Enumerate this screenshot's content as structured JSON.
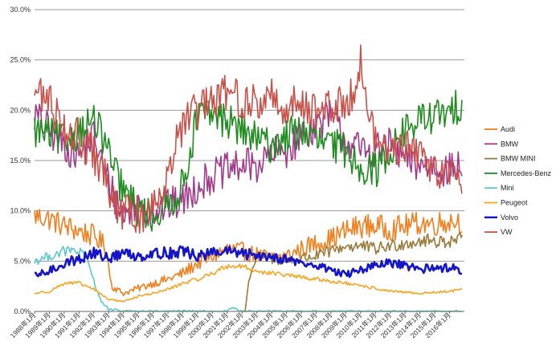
{
  "chart_data": {
    "type": "line",
    "title": "",
    "xlabel": "",
    "ylabel": "",
    "ylim": [
      0,
      30
    ],
    "y_ticks": [
      "0.0%",
      "5.0%",
      "10.0%",
      "15.0%",
      "20.0%",
      "25.0%",
      "30.0%"
    ],
    "x_ticks": [
      "1988年1月",
      "1989年1月",
      "1990年1月",
      "1991年1月",
      "1992年1月",
      "1993年1月",
      "1994年1月",
      "1995年1月",
      "1996年1月",
      "1997年1月",
      "1998年1月",
      "1999年1月",
      "2000年1月",
      "2001年1月",
      "2002年1月",
      "2003年1月",
      "2004年1月",
      "2005年1月",
      "2006年1月",
      "2007年1月",
      "2008年1月",
      "2009年1月",
      "2010年1月",
      "2011年1月",
      "2012年1月",
      "2013年1月",
      "2014年1月",
      "2015年1月",
      "2016年1月"
    ],
    "x_range": [
      1988,
      2017
    ],
    "grid": "horizontal",
    "legend": "right",
    "series": [
      {
        "name": "Audi",
        "color": "#f07f1e",
        "noise": 1.2,
        "width": 1.6,
        "points": [
          [
            1988,
            9.5
          ],
          [
            1989,
            9.2
          ],
          [
            1990,
            8.5
          ],
          [
            1991,
            8.0
          ],
          [
            1992,
            7.5
          ],
          [
            1992.8,
            6.5
          ],
          [
            1993.2,
            2.5
          ],
          [
            1994,
            1.8
          ],
          [
            1995,
            2.3
          ],
          [
            1996,
            2.8
          ],
          [
            1997,
            3.2
          ],
          [
            1998,
            3.8
          ],
          [
            1999,
            4.8
          ],
          [
            2000,
            5.5
          ],
          [
            2001,
            6.2
          ],
          [
            2002,
            6.0
          ],
          [
            2003,
            5.6
          ],
          [
            2004,
            5.3
          ],
          [
            2005,
            5.5
          ],
          [
            2006,
            6.2
          ],
          [
            2007,
            6.8
          ],
          [
            2008,
            7.2
          ],
          [
            2009,
            8.0
          ],
          [
            2010,
            8.5
          ],
          [
            2011,
            8.5
          ],
          [
            2012,
            8.2
          ],
          [
            2013,
            8.5
          ],
          [
            2014,
            8.8
          ],
          [
            2015,
            8.7
          ],
          [
            2016,
            9.0
          ],
          [
            2016.9,
            9.0
          ]
        ]
      },
      {
        "name": "BMW",
        "color": "#a23a8c",
        "noise": 1.8,
        "width": 1.6,
        "points": [
          [
            1988,
            19.5
          ],
          [
            1989,
            18.0
          ],
          [
            1990,
            16.5
          ],
          [
            1991,
            15.5
          ],
          [
            1992,
            17.5
          ],
          [
            1992.7,
            14.0
          ],
          [
            1993.5,
            11.0
          ],
          [
            1994,
            9.5
          ],
          [
            1995,
            10.5
          ],
          [
            1996,
            10.0
          ],
          [
            1997,
            10.5
          ],
          [
            1998,
            11.0
          ],
          [
            1999,
            12.5
          ],
          [
            2000,
            13.5
          ],
          [
            2001,
            14.0
          ],
          [
            2002,
            14.5
          ],
          [
            2003,
            14.5
          ],
          [
            2004,
            15.5
          ],
          [
            2005,
            16.0
          ],
          [
            2006,
            17.5
          ],
          [
            2007,
            18.5
          ],
          [
            2008,
            19.5
          ],
          [
            2009,
            17.0
          ],
          [
            2010,
            16.0
          ],
          [
            2011,
            16.0
          ],
          [
            2012,
            16.5
          ],
          [
            2013,
            15.0
          ],
          [
            2014,
            14.5
          ],
          [
            2015,
            14.5
          ],
          [
            2016,
            14.0
          ],
          [
            2016.9,
            14.5
          ]
        ]
      },
      {
        "name": "BMW MINI",
        "color": "#9a7a3a",
        "noise": 0.8,
        "width": 1.6,
        "points": [
          [
            2002.2,
            0.0
          ],
          [
            2002.5,
            3.5
          ],
          [
            2003,
            5.5
          ],
          [
            2004,
            5.2
          ],
          [
            2005,
            5.0
          ],
          [
            2006,
            5.3
          ],
          [
            2007,
            5.5
          ],
          [
            2008,
            6.0
          ],
          [
            2009,
            6.5
          ],
          [
            2010,
            6.5
          ],
          [
            2011,
            6.2
          ],
          [
            2012,
            6.5
          ],
          [
            2013,
            6.8
          ],
          [
            2014,
            7.0
          ],
          [
            2015,
            7.0
          ],
          [
            2016,
            7.0
          ],
          [
            2016.9,
            7.2
          ]
        ]
      },
      {
        "name": "Mercedes-Benz",
        "color": "#1e8c1e",
        "noise": 1.8,
        "width": 1.6,
        "points": [
          [
            1988,
            18.0
          ],
          [
            1989,
            17.5
          ],
          [
            1990,
            17.0
          ],
          [
            1991,
            18.0
          ],
          [
            1992,
            19.0
          ],
          [
            1992.7,
            17.0
          ],
          [
            1993.5,
            13.5
          ],
          [
            1994,
            12.0
          ],
          [
            1995,
            10.0
          ],
          [
            1996,
            9.5
          ],
          [
            1997,
            10.5
          ],
          [
            1998,
            12.5
          ],
          [
            1999,
            19.5
          ],
          [
            2000,
            19.5
          ],
          [
            2001,
            19.0
          ],
          [
            2002,
            18.0
          ],
          [
            2003,
            17.0
          ],
          [
            2004,
            16.5
          ],
          [
            2005,
            17.5
          ],
          [
            2006,
            18.0
          ],
          [
            2007,
            17.0
          ],
          [
            2008,
            16.5
          ],
          [
            2009,
            16.0
          ],
          [
            2010,
            14.5
          ],
          [
            2011,
            14.0
          ],
          [
            2012,
            16.0
          ],
          [
            2013,
            18.0
          ],
          [
            2014,
            19.0
          ],
          [
            2015,
            19.5
          ],
          [
            2016,
            19.5
          ],
          [
            2016.9,
            21.0
          ]
        ]
      },
      {
        "name": "Mini",
        "color": "#5ac8c8",
        "noise": 0.7,
        "width": 1.6,
        "points": [
          [
            1988,
            5.0
          ],
          [
            1989,
            5.5
          ],
          [
            1990,
            6.0
          ],
          [
            1991,
            6.0
          ],
          [
            1991.6,
            5.0
          ],
          [
            1992,
            3.0
          ],
          [
            1992.5,
            1.0
          ],
          [
            1993,
            0.2
          ],
          [
            1994,
            0.05
          ],
          [
            1996,
            0.0
          ],
          [
            2001,
            0.0
          ],
          [
            2001.3,
            0.4
          ],
          [
            2001.8,
            0.1
          ],
          [
            2002,
            0.0
          ],
          [
            2016.9,
            0.0
          ]
        ]
      },
      {
        "name": "Peugeot",
        "color": "#f5a623",
        "noise": 0.5,
        "width": 1.6,
        "points": [
          [
            1988,
            1.8
          ],
          [
            1989,
            2.0
          ],
          [
            1990,
            2.8
          ],
          [
            1991,
            2.8
          ],
          [
            1992,
            2.2
          ],
          [
            1993,
            1.2
          ],
          [
            1994,
            1.0
          ],
          [
            1995,
            1.5
          ],
          [
            1996,
            1.8
          ],
          [
            1997,
            2.2
          ],
          [
            1998,
            2.8
          ],
          [
            1999,
            3.2
          ],
          [
            2000,
            3.8
          ],
          [
            2001,
            4.5
          ],
          [
            2002,
            4.5
          ],
          [
            2003,
            4.0
          ],
          [
            2004,
            3.8
          ],
          [
            2005,
            3.6
          ],
          [
            2006,
            3.4
          ],
          [
            2007,
            3.2
          ],
          [
            2008,
            3.0
          ],
          [
            2009,
            2.8
          ],
          [
            2010,
            2.5
          ],
          [
            2011,
            2.3
          ],
          [
            2012,
            2.0
          ],
          [
            2013,
            1.9
          ],
          [
            2014,
            1.8
          ],
          [
            2015,
            1.9
          ],
          [
            2016,
            2.0
          ],
          [
            2016.9,
            2.2
          ]
        ]
      },
      {
        "name": "Volvo",
        "color": "#1414c8",
        "noise": 0.8,
        "width": 2.6,
        "points": [
          [
            1988,
            3.5
          ],
          [
            1989,
            4.0
          ],
          [
            1990,
            4.8
          ],
          [
            1991,
            5.2
          ],
          [
            1992,
            5.8
          ],
          [
            1993,
            5.3
          ],
          [
            1994,
            5.8
          ],
          [
            1995,
            5.5
          ],
          [
            1996,
            5.8
          ],
          [
            1997,
            5.8
          ],
          [
            1998,
            6.0
          ],
          [
            1999,
            5.5
          ],
          [
            2000,
            5.8
          ],
          [
            2001,
            6.0
          ],
          [
            2002,
            5.7
          ],
          [
            2003,
            5.6
          ],
          [
            2004,
            5.5
          ],
          [
            2005,
            5.2
          ],
          [
            2006,
            4.8
          ],
          [
            2007,
            4.5
          ],
          [
            2008,
            4.2
          ],
          [
            2009,
            3.6
          ],
          [
            2010,
            4.2
          ],
          [
            2011,
            4.5
          ],
          [
            2012,
            4.8
          ],
          [
            2013,
            4.5
          ],
          [
            2014,
            4.2
          ],
          [
            2015,
            4.3
          ],
          [
            2016,
            4.4
          ],
          [
            2016.9,
            4.1
          ]
        ]
      },
      {
        "name": "VW",
        "color": "#c8524a",
        "noise": 2.0,
        "width": 1.6,
        "points": [
          [
            1988,
            22.0
          ],
          [
            1989,
            21.0
          ],
          [
            1990,
            18.5
          ],
          [
            1991,
            17.0
          ],
          [
            1992,
            15.5
          ],
          [
            1992.7,
            13.5
          ],
          [
            1993.3,
            10.5
          ],
          [
            1994,
            10.0
          ],
          [
            1995,
            9.5
          ],
          [
            1996,
            10.5
          ],
          [
            1997,
            14.0
          ],
          [
            1998,
            18.5
          ],
          [
            1999,
            20.0
          ],
          [
            2000,
            20.5
          ],
          [
            2001,
            22.0
          ],
          [
            2002,
            21.0
          ],
          [
            2003,
            20.5
          ],
          [
            2004,
            21.5
          ],
          [
            2005,
            20.0
          ],
          [
            2006,
            21.0
          ],
          [
            2007,
            20.0
          ],
          [
            2008,
            20.0
          ],
          [
            2009,
            21.0
          ],
          [
            2009.5,
            22.0
          ],
          [
            2010,
            25.0
          ],
          [
            2010.4,
            20.5
          ],
          [
            2011,
            17.0
          ],
          [
            2012,
            16.0
          ],
          [
            2013,
            16.5
          ],
          [
            2014,
            15.5
          ],
          [
            2015,
            14.5
          ],
          [
            2016,
            13.5
          ],
          [
            2016.9,
            13.0
          ]
        ]
      }
    ]
  }
}
